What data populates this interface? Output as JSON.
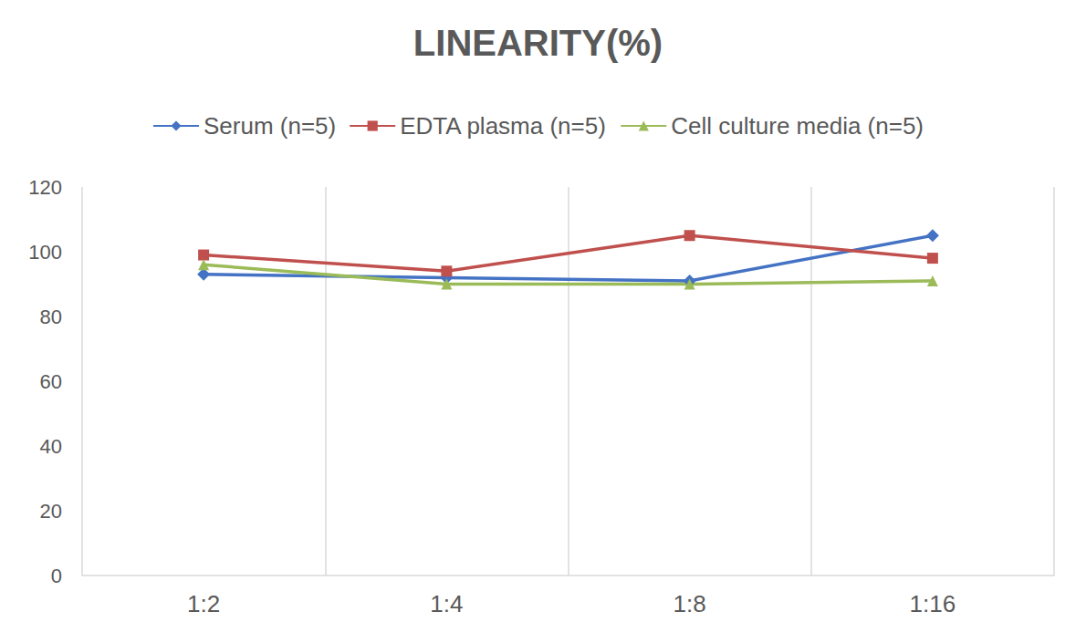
{
  "chart_data": {
    "type": "line",
    "title": "LINEARITY(%)",
    "categories": [
      "1:2",
      "1:4",
      "1:8",
      "1:16"
    ],
    "series": [
      {
        "name": "Serum (n=5)",
        "color": "#4472c4",
        "marker": "diamond",
        "values": [
          93,
          92,
          91,
          105
        ]
      },
      {
        "name": "EDTA plasma (n=5)",
        "color": "#c0504d",
        "marker": "square",
        "values": [
          99,
          94,
          105,
          98
        ]
      },
      {
        "name": "Cell culture media (n=5)",
        "color": "#9bbb59",
        "marker": "triangle",
        "values": [
          96,
          90,
          90,
          91
        ]
      }
    ],
    "ylim": [
      0,
      120
    ],
    "yticks": [
      0,
      20,
      40,
      60,
      80,
      100,
      120
    ],
    "grid": true,
    "legend": "top"
  }
}
